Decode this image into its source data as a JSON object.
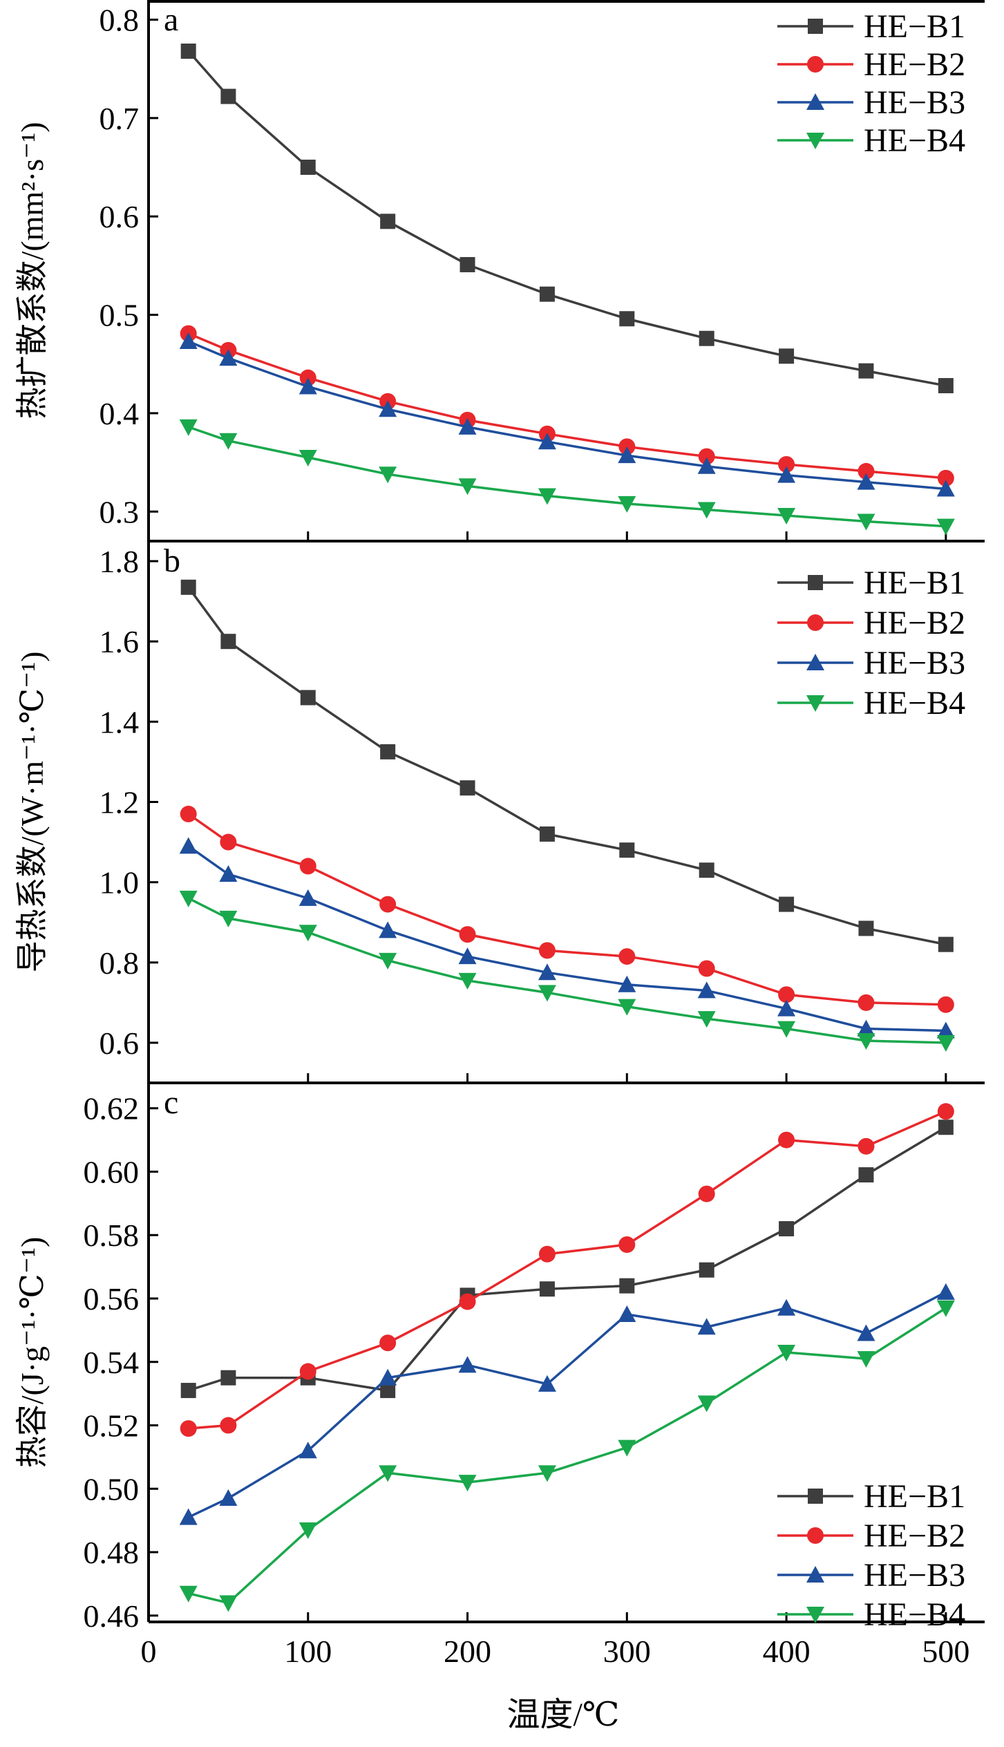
{
  "chart_data": [
    {
      "type": "line",
      "panel_label": "a",
      "ylabel": "热扩散系数/(mm²·s⁻¹)",
      "xlabel": "",
      "xlim": [
        0,
        520
      ],
      "ylim": [
        0.27,
        0.82
      ],
      "yticks": [
        0.3,
        0.4,
        0.5,
        0.6,
        0.7,
        0.8
      ],
      "ytick_labels": [
        "0.3",
        "0.4",
        "0.5",
        "0.6",
        "0.7",
        "0.8"
      ],
      "legend_position": "top-right",
      "x": [
        25,
        50,
        100,
        150,
        200,
        250,
        300,
        350,
        400,
        450,
        500
      ],
      "series": [
        {
          "name": "HE−B1",
          "color": "#3d3d3d",
          "marker": "square",
          "values": [
            0.768,
            0.722,
            0.65,
            0.595,
            0.551,
            0.521,
            0.496,
            0.476,
            0.458,
            0.443,
            0.428
          ]
        },
        {
          "name": "HE−B2",
          "color": "#e8282c",
          "marker": "circle",
          "values": [
            0.481,
            0.464,
            0.436,
            0.412,
            0.393,
            0.379,
            0.366,
            0.356,
            0.348,
            0.341,
            0.334
          ]
        },
        {
          "name": "HE−B3",
          "color": "#1f4e9c",
          "marker": "triangle-up",
          "values": [
            0.473,
            0.456,
            0.427,
            0.404,
            0.386,
            0.371,
            0.357,
            0.346,
            0.337,
            0.33,
            0.323
          ]
        },
        {
          "name": "HE−B4",
          "color": "#1aa84c",
          "marker": "triangle-down",
          "values": [
            0.386,
            0.372,
            0.355,
            0.338,
            0.326,
            0.316,
            0.308,
            0.302,
            0.296,
            0.29,
            0.285
          ]
        }
      ]
    },
    {
      "type": "line",
      "panel_label": "b",
      "ylabel": "导热系数/(W·m⁻¹·℃⁻¹)",
      "xlabel": "",
      "xlim": [
        0,
        520
      ],
      "ylim": [
        0.5,
        1.85
      ],
      "yticks": [
        0.6,
        0.8,
        1.0,
        1.2,
        1.4,
        1.6,
        1.8
      ],
      "ytick_labels": [
        "0.6",
        "0.8",
        "1.0",
        "1.2",
        "1.4",
        "1.6",
        "1.8"
      ],
      "legend_position": "top-right",
      "x": [
        25,
        50,
        100,
        150,
        200,
        250,
        300,
        350,
        400,
        450,
        500
      ],
      "series": [
        {
          "name": "HE−B1",
          "color": "#3d3d3d",
          "marker": "square",
          "values": [
            1.735,
            1.6,
            1.46,
            1.325,
            1.235,
            1.12,
            1.08,
            1.03,
            0.945,
            0.885,
            0.845
          ]
        },
        {
          "name": "HE−B2",
          "color": "#e8282c",
          "marker": "circle",
          "values": [
            1.17,
            1.1,
            1.04,
            0.945,
            0.87,
            0.83,
            0.815,
            0.785,
            0.72,
            0.7,
            0.695
          ]
        },
        {
          "name": "HE−B3",
          "color": "#1f4e9c",
          "marker": "triangle-up",
          "values": [
            1.09,
            1.02,
            0.96,
            0.88,
            0.815,
            0.775,
            0.745,
            0.73,
            0.685,
            0.635,
            0.63
          ]
        },
        {
          "name": "HE−B4",
          "color": "#1aa84c",
          "marker": "triangle-down",
          "values": [
            0.96,
            0.91,
            0.875,
            0.805,
            0.755,
            0.725,
            0.69,
            0.66,
            0.635,
            0.605,
            0.6
          ]
        }
      ]
    },
    {
      "type": "line",
      "panel_label": "c",
      "ylabel": "热容/(J·g⁻¹·℃⁻¹)",
      "xlabel": "温度/℃",
      "xlim": [
        0,
        520
      ],
      "ylim": [
        0.458,
        0.628
      ],
      "xticks": [
        0,
        100,
        200,
        300,
        400,
        500
      ],
      "xtick_labels": [
        "0",
        "100",
        "200",
        "300",
        "400",
        "500"
      ],
      "yticks": [
        0.46,
        0.48,
        0.5,
        0.52,
        0.54,
        0.56,
        0.58,
        0.6,
        0.62
      ],
      "ytick_labels": [
        "0.46",
        "0.48",
        "0.50",
        "0.52",
        "0.54",
        "0.56",
        "0.58",
        "0.60",
        "0.62"
      ],
      "legend_position": "bottom-right",
      "x": [
        25,
        50,
        100,
        150,
        200,
        250,
        300,
        350,
        400,
        450,
        500
      ],
      "series": [
        {
          "name": "HE−B1",
          "color": "#3d3d3d",
          "marker": "square",
          "values": [
            0.531,
            0.535,
            0.535,
            0.531,
            0.561,
            0.563,
            0.564,
            0.569,
            0.582,
            0.599,
            0.614
          ]
        },
        {
          "name": "HE−B2",
          "color": "#e8282c",
          "marker": "circle",
          "values": [
            0.519,
            0.52,
            0.537,
            0.546,
            0.559,
            0.574,
            0.577,
            0.593,
            0.61,
            0.608,
            0.619
          ]
        },
        {
          "name": "HE−B3",
          "color": "#1f4e9c",
          "marker": "triangle-up",
          "values": [
            0.491,
            0.497,
            0.512,
            0.535,
            0.539,
            0.533,
            0.555,
            0.551,
            0.557,
            0.549,
            0.562
          ]
        },
        {
          "name": "HE−B4",
          "color": "#1aa84c",
          "marker": "triangle-down",
          "values": [
            0.467,
            0.464,
            0.487,
            0.505,
            0.502,
            0.505,
            0.513,
            0.527,
            0.543,
            0.541,
            0.557
          ]
        }
      ]
    }
  ]
}
